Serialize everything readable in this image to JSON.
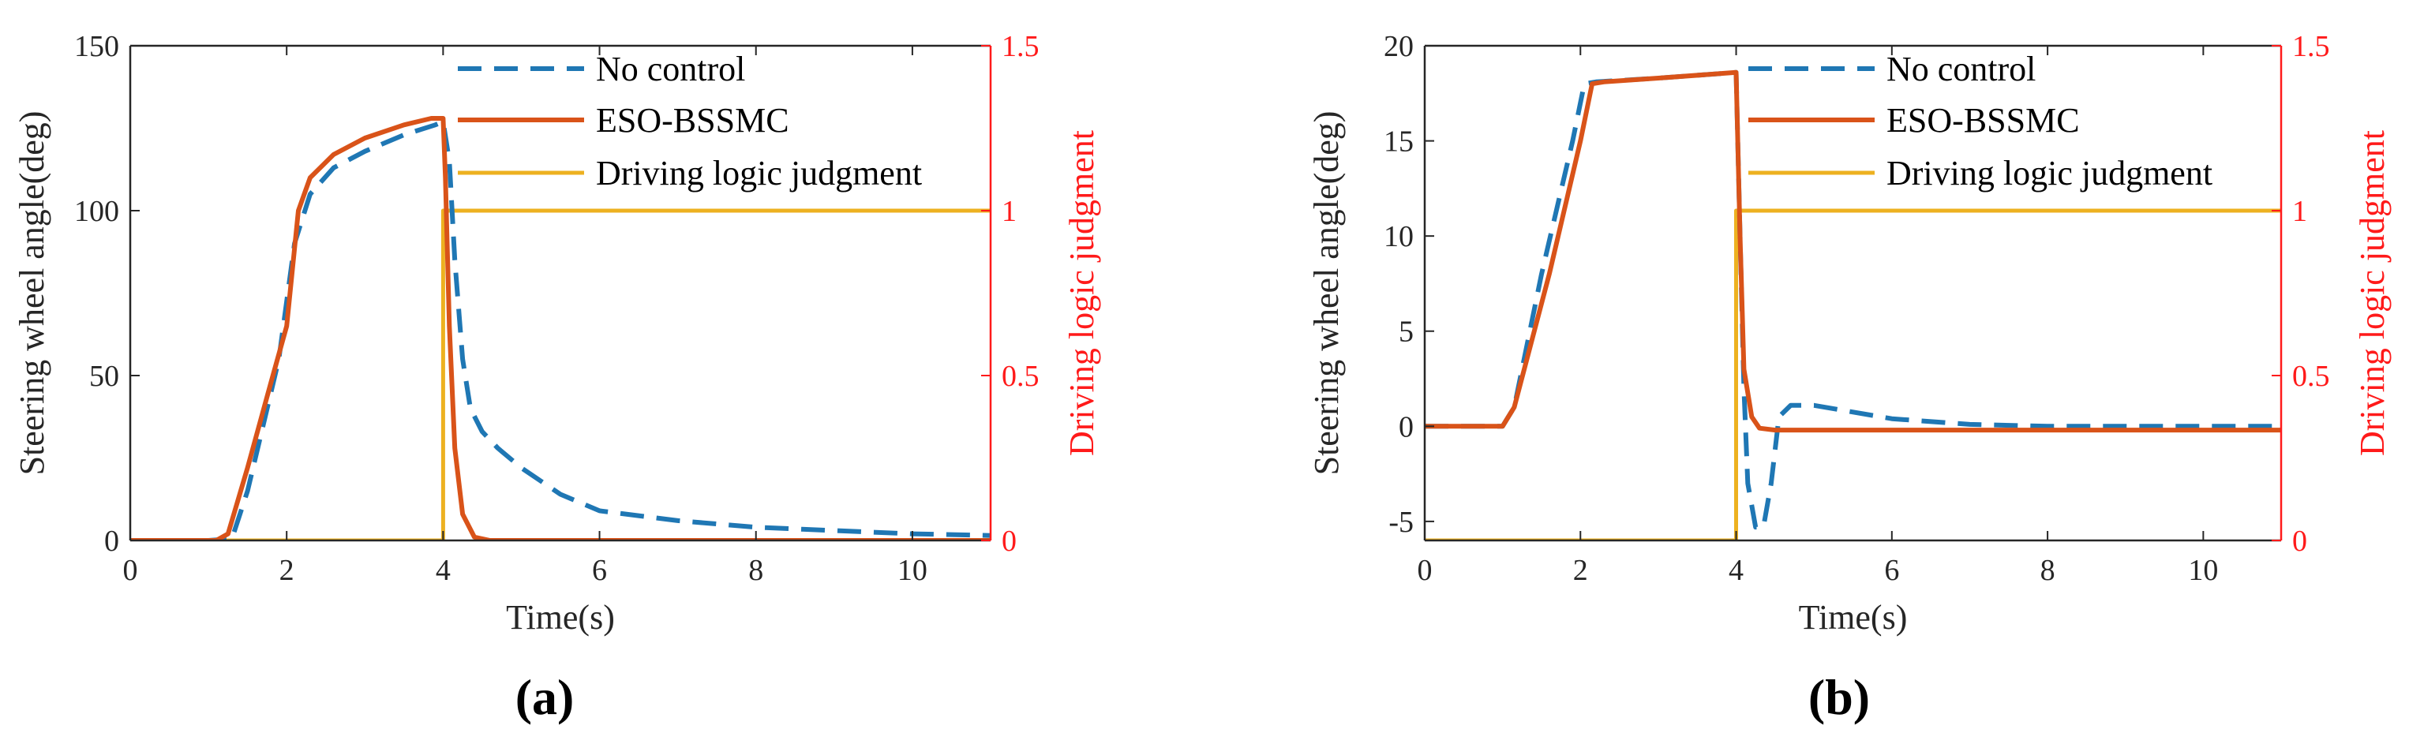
{
  "colors": {
    "no_control": "#1f77b4",
    "eso_bssmc": "#d95319",
    "logic": "#edb120",
    "right_axis": "#ff1a1a",
    "axis": "#262626"
  },
  "chart_data": [
    {
      "type": "line",
      "panel_label": "(a)",
      "xlabel": "Time(s)",
      "ylabel_left": "Steering wheel angle(deg)",
      "ylabel_right": "Driving logic judgment",
      "xlim": [
        0,
        11
      ],
      "ylim_left": [
        0,
        150
      ],
      "ylim_right": [
        0,
        1.5
      ],
      "x_ticks": [
        "0",
        "2",
        "4",
        "6",
        "8",
        "10"
      ],
      "y_ticks_left": [
        "0",
        "50",
        "100",
        "150"
      ],
      "y_ticks_right": [
        "0",
        "0.5",
        "1",
        "1.5"
      ],
      "legend_position": "top-right",
      "series": [
        {
          "name": "No control",
          "axis": "left",
          "style": "dashed",
          "x": [
            0,
            1.0,
            1.3,
            1.5,
            1.7,
            1.9,
            2.1,
            2.3,
            2.6,
            3.0,
            3.5,
            3.9,
            4.0,
            4.08,
            4.15,
            4.25,
            4.35,
            4.5,
            4.7,
            5.0,
            5.5,
            6.0,
            7.0,
            8.0,
            9.0,
            10.0,
            11.0
          ],
          "y": [
            0,
            0,
            0.5,
            15,
            35,
            55,
            90,
            105,
            113,
            118,
            123,
            126,
            127,
            115,
            85,
            55,
            40,
            33,
            28,
            22,
            14,
            9,
            6,
            4,
            3,
            2,
            1.5
          ]
        },
        {
          "name": "ESO-BSSMC",
          "axis": "left",
          "style": "solid",
          "x": [
            0,
            1.1,
            1.25,
            1.5,
            1.8,
            2.0,
            2.15,
            2.3,
            2.6,
            3.0,
            3.5,
            3.85,
            4.0,
            4.03,
            4.08,
            4.15,
            4.25,
            4.4,
            4.6,
            11.0
          ],
          "y": [
            0,
            0,
            2,
            22,
            48,
            65,
            100,
            110,
            117,
            122,
            126,
            128,
            128,
            110,
            65,
            28,
            8,
            1,
            0,
            0
          ]
        },
        {
          "name": "Driving logic judgment",
          "axis": "right",
          "style": "solid",
          "x": [
            0,
            4.0,
            4.0,
            11.0
          ],
          "y": [
            0,
            0,
            1,
            1
          ]
        }
      ]
    },
    {
      "type": "line",
      "panel_label": "(b)",
      "xlabel": "Time(s)",
      "ylabel_left": "Steering wheel angle(deg)",
      "ylabel_right": "Driving logic judgment",
      "xlim": [
        0,
        11
      ],
      "ylim_left": [
        -6,
        20
      ],
      "ylim_right": [
        0,
        1.5
      ],
      "x_ticks": [
        "0",
        "2",
        "4",
        "6",
        "8",
        "10"
      ],
      "y_ticks_left": [
        "-5",
        "0",
        "5",
        "10",
        "15",
        "20"
      ],
      "y_ticks_right": [
        "0",
        "0.5",
        "1",
        "1.5"
      ],
      "legend_position": "top-right",
      "series": [
        {
          "name": "No control",
          "axis": "left",
          "style": "dashed",
          "x": [
            0,
            1.0,
            1.15,
            1.5,
            1.9,
            2.05,
            2.2,
            3.0,
            4.0,
            4.05,
            4.1,
            4.15,
            4.25,
            4.35,
            4.45,
            4.55,
            4.7,
            5.0,
            6.0,
            7.0,
            8.0,
            11.0
          ],
          "y": [
            0,
            0,
            1,
            8,
            15,
            18,
            18.1,
            18.3,
            18.6,
            10,
            2,
            -3,
            -5.3,
            -5.3,
            -3,
            0.5,
            1.1,
            1.1,
            0.4,
            0.1,
            0,
            0
          ]
        },
        {
          "name": "ESO-BSSMC",
          "axis": "left",
          "style": "solid",
          "x": [
            0,
            1.0,
            1.15,
            1.6,
            2.0,
            2.15,
            2.3,
            3.0,
            4.0,
            4.05,
            4.1,
            4.2,
            4.3,
            4.5,
            11.0
          ],
          "y": [
            0,
            0,
            1,
            8,
            15,
            18,
            18.1,
            18.3,
            18.6,
            10,
            3,
            0.5,
            -0.1,
            -0.2,
            -0.2
          ]
        },
        {
          "name": "Driving logic judgment",
          "axis": "right",
          "style": "solid",
          "x": [
            0,
            4.0,
            4.0,
            11.0
          ],
          "y": [
            0,
            0,
            1,
            1
          ]
        }
      ]
    }
  ]
}
